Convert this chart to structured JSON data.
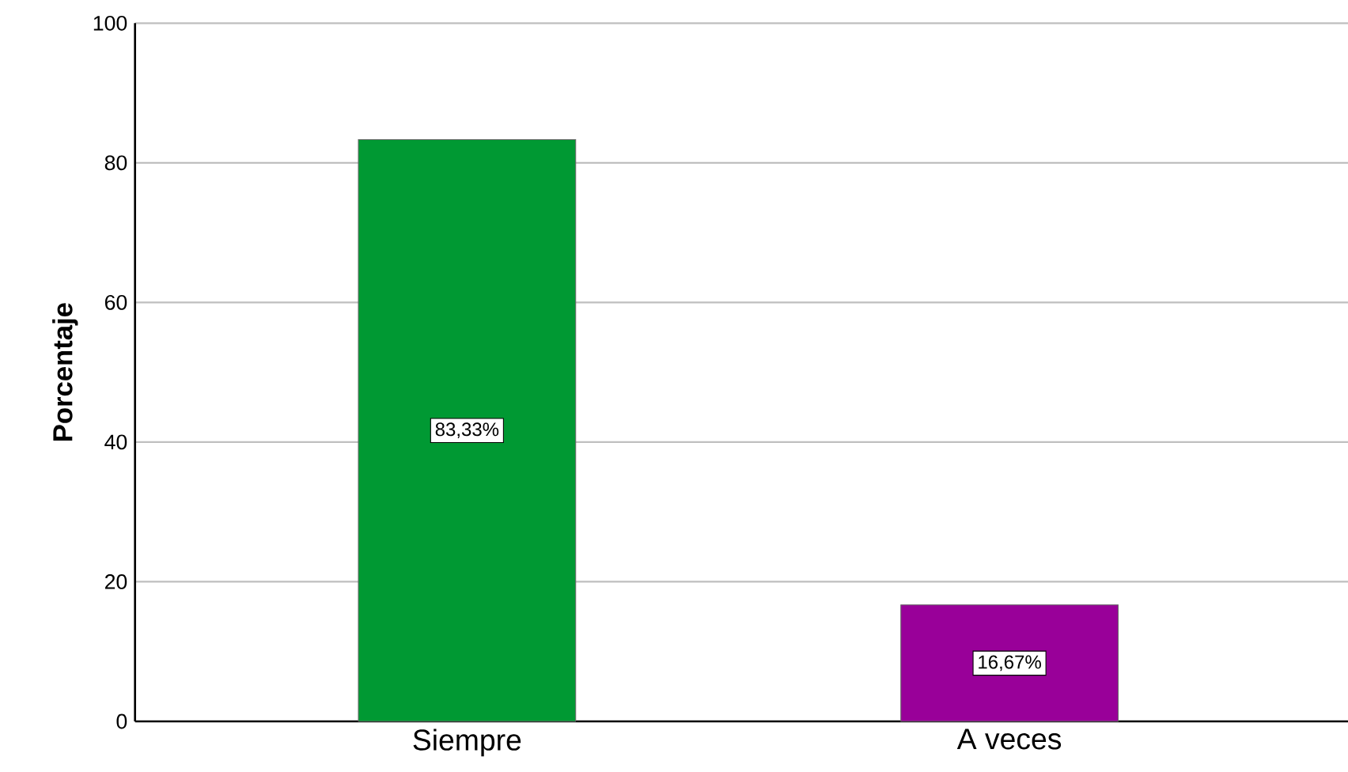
{
  "chart_data": {
    "type": "bar",
    "ylabel": "Porcentaje",
    "categories": [
      "Siempre",
      "A veces"
    ],
    "values": [
      83.33,
      16.67
    ],
    "colors": [
      "#009933",
      "#990099"
    ],
    "value_labels": [
      "83,33%",
      "16,67%"
    ],
    "ylim": [
      0,
      100
    ],
    "yticks": [
      0,
      20,
      40,
      60,
      80,
      100
    ],
    "grid": "y"
  }
}
